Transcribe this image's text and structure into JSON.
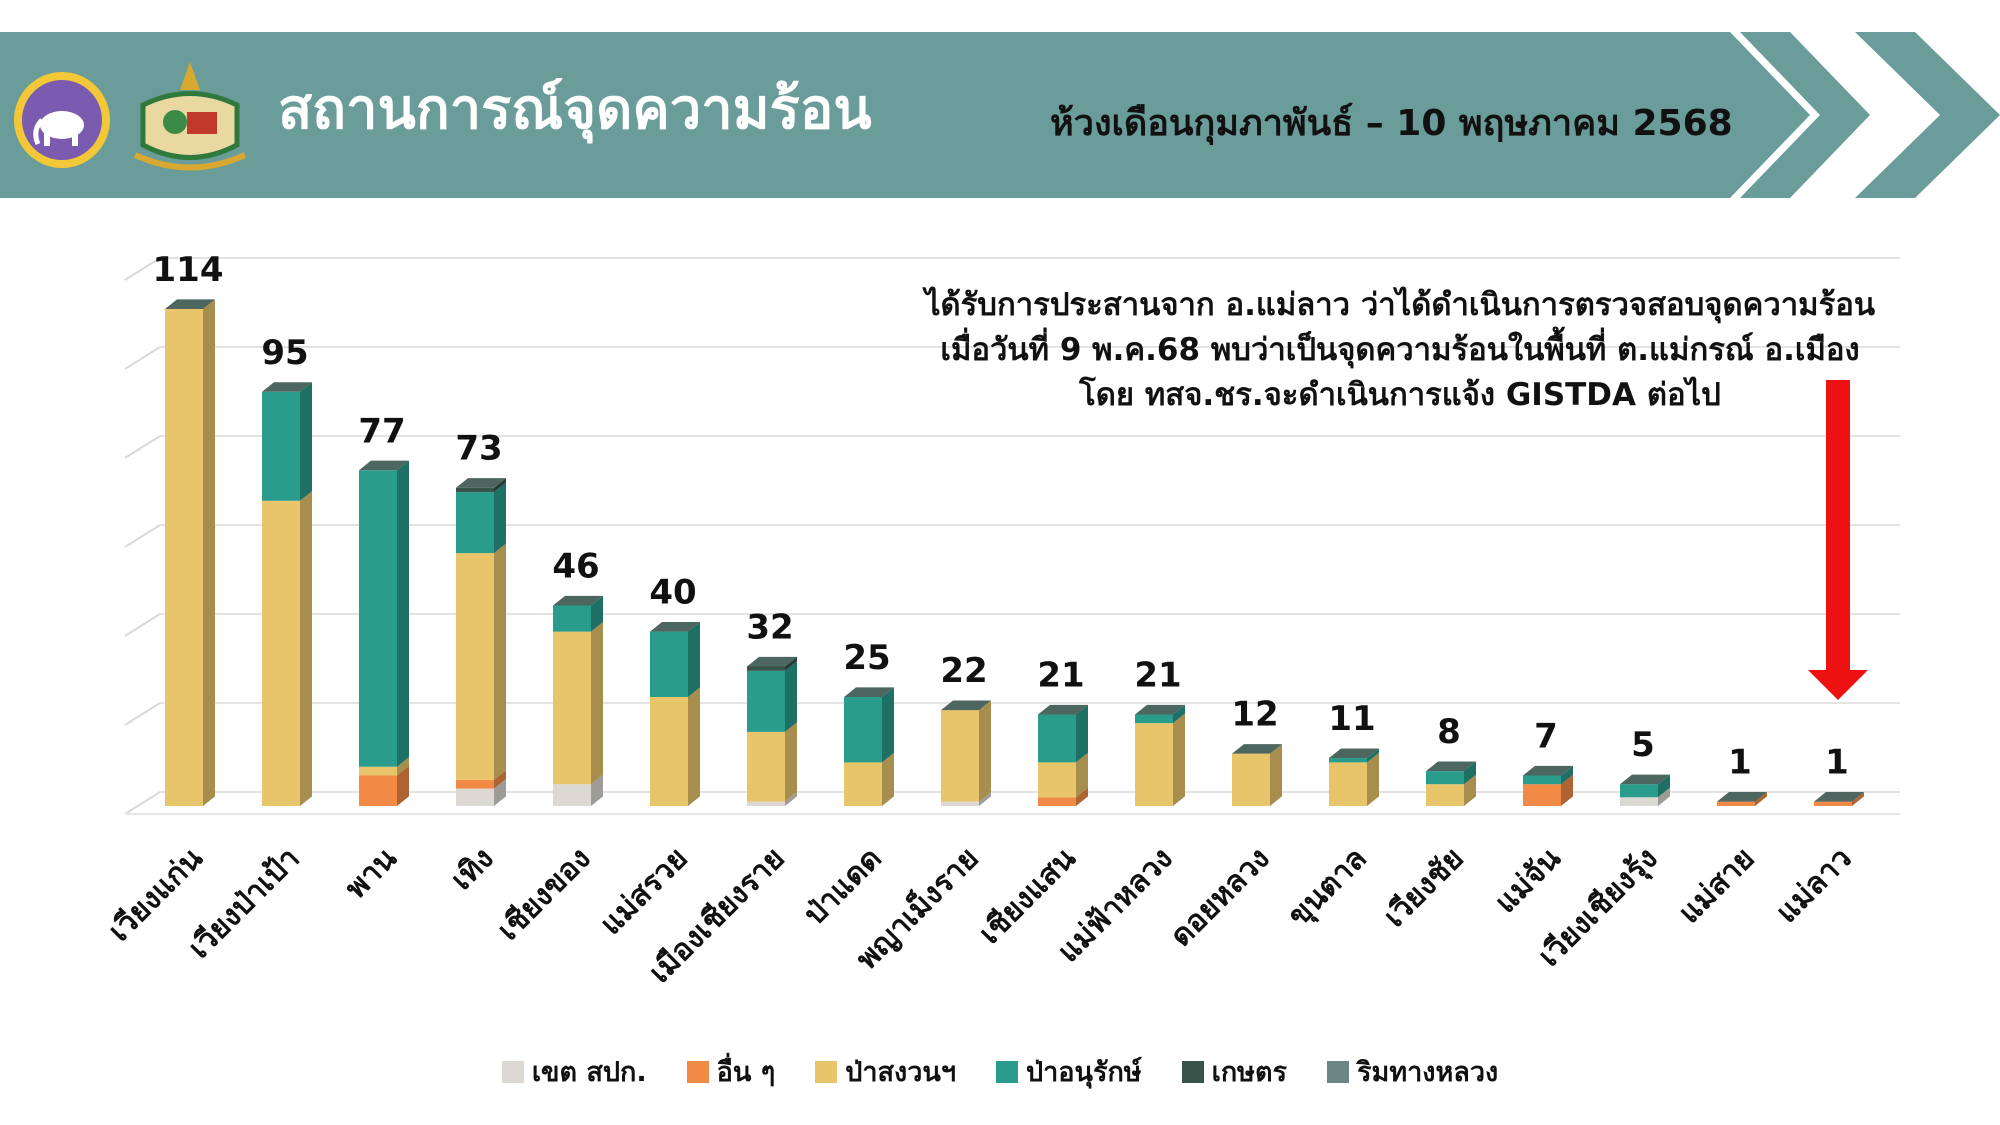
{
  "header": {
    "title": "สถานการณ์จุดความร้อน",
    "subtitle": "ห้วงเดือนกุมภาพันธ์ – 10 พฤษภาคม 2568",
    "band_color": "#6a9c9a"
  },
  "annotation": {
    "lines": [
      "ได้รับการประสานจาก อ.แม่ลาว ว่าได้ดำเนินการตรวจสอบจุดความร้อน",
      "เมื่อวันที่ 9 พ.ค.68 พบว่าเป็นจุดความร้อนในพื้นที่ ต.แม่กรณ์ อ.เมือง",
      "โดย ทสจ.ชร.จะดำเนินการแจ้ง GISTDA ต่อไป"
    ],
    "arrow_color": "#ee1111"
  },
  "chart_data": {
    "type": "bar",
    "stacked": true,
    "categories": [
      "เวียงแก่น",
      "เวียงป่าเป้า",
      "พาน",
      "เทิง",
      "เชียงของ",
      "แม่สรวย",
      "เมืองเชียงราย",
      "ป่าแดด",
      "พญาเม็งราย",
      "เชียงแสน",
      "แม่ฟ้าหลวง",
      "ดอยหลวง",
      "ขุนตาล",
      "เวียงชัย",
      "แม่จัน",
      "เวียงเชียงรุ้ง",
      "แม่สาย",
      "แม่ลาว"
    ],
    "totals": [
      114,
      95,
      77,
      73,
      46,
      40,
      32,
      25,
      22,
      21,
      21,
      12,
      11,
      8,
      7,
      5,
      1,
      1
    ],
    "series": [
      {
        "name": "เขต สปก.",
        "color": "#dcd8d2",
        "values": [
          0,
          0,
          0,
          4,
          5,
          0,
          1,
          0,
          1,
          0,
          0,
          0,
          0,
          0,
          0,
          2,
          0,
          0
        ]
      },
      {
        "name": "อื่น ๆ",
        "color": "#f08a45",
        "values": [
          0,
          0,
          7,
          2,
          0,
          0,
          0,
          0,
          0,
          2,
          0,
          0,
          0,
          0,
          5,
          0,
          1,
          1
        ]
      },
      {
        "name": "ป่าสงวนฯ",
        "color": "#e8c56a",
        "values": [
          114,
          70,
          2,
          52,
          35,
          25,
          16,
          10,
          21,
          8,
          19,
          12,
          10,
          5,
          0,
          0,
          0,
          0
        ]
      },
      {
        "name": "ป่าอนุรักษ์",
        "color": "#2a9c8c",
        "values": [
          0,
          25,
          68,
          14,
          6,
          15,
          14,
          15,
          0,
          11,
          2,
          0,
          1,
          3,
          2,
          3,
          0,
          0
        ]
      },
      {
        "name": "เกษตร",
        "color": "#37534a",
        "values": [
          0,
          0,
          0,
          1,
          0,
          0,
          1,
          0,
          0,
          0,
          0,
          0,
          0,
          0,
          0,
          0,
          0,
          0
        ]
      },
      {
        "name": "ริมทางหลวง",
        "color": "#6e8585",
        "values": [
          0,
          0,
          0,
          0,
          0,
          0,
          0,
          0,
          0,
          0,
          0,
          0,
          0,
          0,
          0,
          0,
          0,
          0
        ]
      }
    ],
    "ylim": [
      0,
      125
    ],
    "grid": true,
    "legend_position": "bottom"
  }
}
